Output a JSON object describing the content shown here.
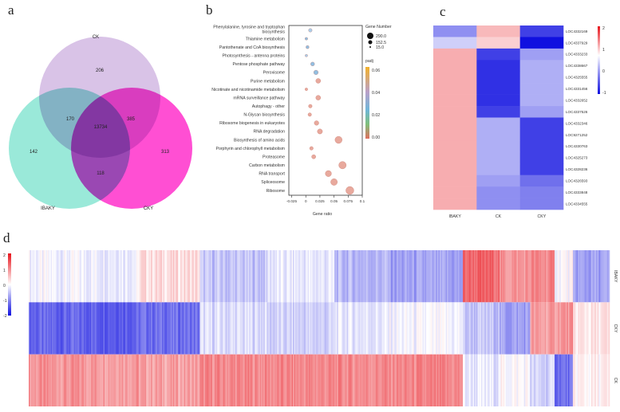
{
  "figure": {
    "panels": {
      "a": "a",
      "b": "b",
      "c": "c",
      "d": "d"
    }
  },
  "venn": {
    "sets": [
      {
        "name": "CK",
        "color": "#c9a9dd"
      },
      {
        "name": "IBAKY",
        "color": "#6fe0c9"
      },
      {
        "name": "CKY",
        "color": "#ff14c4"
      }
    ],
    "regions": {
      "ck_only": "206",
      "ck_ibaky": "170",
      "ck_cky": "385",
      "all": "13734",
      "ibaky_only": "142",
      "cky_only": "313",
      "ibaky_cky": "118"
    }
  },
  "chart_data": [
    {
      "panel": "b",
      "type": "scatter",
      "title": "",
      "xlabel": "Gene ratio",
      "ylabel": "",
      "xlim": [
        -0.03,
        0.1
      ],
      "xticks": [
        "-0.025",
        "0",
        "0.025",
        "0.05",
        "0.075",
        "0.1"
      ],
      "xtick_values": [
        -0.025,
        0,
        0.025,
        0.05,
        0.075,
        0.1
      ],
      "categories": [
        "Phenylalanine, tyrosine and tryptophan biosynthesis",
        "Thiamine metabolism",
        "Pantothenate and CoA biosynthesis",
        "Photosynthesis - antenna proteins",
        "Pentose phosphate pathway",
        "Peroxisome",
        "Purine metabolism",
        "Nicotinate and nicotinamide metabolism",
        "mRNA surveillance pathway",
        "Autophagy - other",
        "N-Glycan biosynthesis",
        "Ribosome biogenesis in eukaryotes",
        "RNA degradation",
        "Biosynthesis of amino acids",
        "Porphyrin and chlorophyll metabolism",
        "Proteasome",
        "Carbon metabolism",
        "RNA transport",
        "Spliceosome",
        "Ribosome"
      ],
      "gene_ratio": [
        0.008,
        0.001,
        0.003,
        0.001,
        0.012,
        0.018,
        0.022,
        0.001,
        0.022,
        0.008,
        0.007,
        0.019,
        0.025,
        0.058,
        0.01,
        0.014,
        0.065,
        0.04,
        0.05,
        0.078
      ],
      "gene_number": [
        30,
        12,
        20,
        10,
        40,
        60,
        70,
        12,
        70,
        30,
        28,
        60,
        80,
        190,
        30,
        45,
        210,
        130,
        160,
        250
      ],
      "padj": [
        0.03,
        0.04,
        0.04,
        0.02,
        0.04,
        0.04,
        0.0,
        0.0,
        0.0,
        0.0,
        0.0,
        0.0,
        0.0,
        0.0,
        0.0,
        0.0,
        0.0,
        0.0,
        0.0,
        0.0
      ],
      "legend_size": {
        "title": "Gene Number",
        "entries": [
          "290.0",
          "152.5",
          "15.0"
        ]
      },
      "legend_color": {
        "title": "padj",
        "entries": [
          "0.06",
          "0.04",
          "0.02",
          "0.00"
        ]
      }
    },
    {
      "panel": "c",
      "type": "heatmap",
      "columns": [
        "IBAKY",
        "CK",
        "CKY"
      ],
      "rows": [
        "LOC4332169",
        "LOC4337929",
        "LOC4333233",
        "LOC4338667",
        "LOC4325555",
        "LOC4331456",
        "LOC4332652",
        "LOC4337526",
        "LOC4332346",
        "LOC9271252",
        "LOC4330763",
        "LOC4325273",
        "LOC4328236",
        "LOC4326593",
        "LOC4333848",
        "LOC4334555"
      ],
      "values": [
        [
          -0.7,
          0.6,
          -1.2
        ],
        [
          -0.3,
          0.4,
          -1.5
        ],
        [
          0.7,
          -1.2,
          -0.6
        ],
        [
          0.7,
          -1.3,
          -0.5
        ],
        [
          0.7,
          -1.3,
          -0.5
        ],
        [
          0.7,
          -1.3,
          -0.5
        ],
        [
          0.7,
          -1.3,
          -0.5
        ],
        [
          0.7,
          -1.2,
          -0.6
        ],
        [
          0.7,
          -0.5,
          -1.2
        ],
        [
          0.7,
          -0.5,
          -1.2
        ],
        [
          0.7,
          -0.5,
          -1.2
        ],
        [
          0.7,
          -0.5,
          -1.2
        ],
        [
          0.7,
          -0.5,
          -1.2
        ],
        [
          0.7,
          -0.6,
          -0.9
        ],
        [
          0.7,
          -0.7,
          -0.8
        ],
        [
          0.7,
          -0.7,
          -0.8
        ]
      ],
      "scale": [
        "2",
        "1",
        "0",
        "-1"
      ],
      "scale_range": [
        -1.5,
        2
      ]
    },
    {
      "panel": "d",
      "type": "heatmap",
      "rows": [
        "IBAKY",
        "CKY",
        "CK"
      ],
      "scale": [
        "2",
        "1",
        "0",
        "-1",
        "-2"
      ],
      "scale_range": [
        -2,
        2
      ],
      "segments": [
        {
          "n": 90,
          "values": [
            -0.1,
            -1.3,
            0.9
          ]
        },
        {
          "n": 50,
          "values": [
            0.3,
            -1.2,
            0.8
          ]
        },
        {
          "n": 55,
          "values": [
            -0.5,
            -0.3,
            1.0
          ]
        },
        {
          "n": 55,
          "values": [
            -0.2,
            -0.4,
            1.0
          ]
        },
        {
          "n": 45,
          "values": [
            -0.6,
            -0.2,
            1.0
          ]
        },
        {
          "n": 60,
          "values": [
            -0.8,
            -0.1,
            1.0
          ]
        },
        {
          "n": 30,
          "values": [
            1.3,
            -0.5,
            -0.2
          ]
        },
        {
          "n": 25,
          "values": [
            0.9,
            -0.8,
            0.0
          ]
        },
        {
          "n": 20,
          "values": [
            1.0,
            0.8,
            -0.4
          ]
        },
        {
          "n": 15,
          "values": [
            0.0,
            0.9,
            -1.2
          ]
        },
        {
          "n": 30,
          "values": [
            -0.8,
            0.2,
            0.1
          ]
        }
      ]
    }
  ]
}
